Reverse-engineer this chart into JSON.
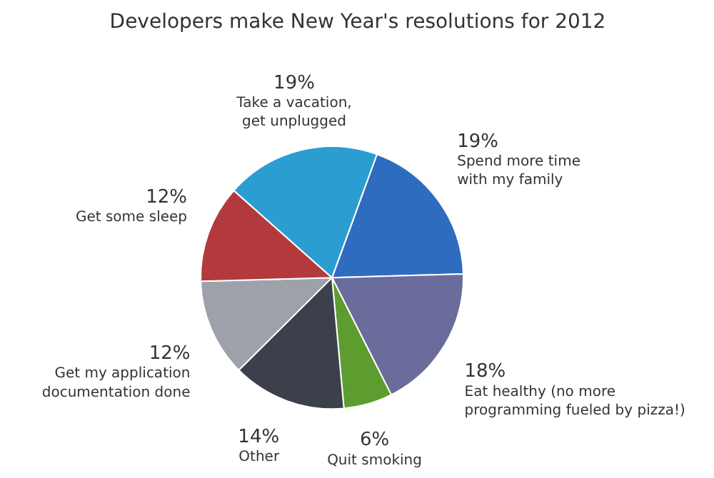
{
  "chart_data": {
    "type": "pie",
    "title": "Developers make New Year's resolutions for 2012",
    "categories": [
      "Spend more time\nwith my family",
      "Eat healthy (no more\nprogramming fueled by pizza!)",
      "Quit smoking",
      "Other",
      "Get my application\ndocumentation done",
      "Get some sleep",
      "Take a vacation,\nget unplugged"
    ],
    "values": [
      19,
      18,
      6,
      14,
      12,
      12,
      19
    ],
    "colors": [
      "#2e6cbf",
      "#6a6c9c",
      "#5d9c2e",
      "#3b404b",
      "#9da2aa",
      "#b33a3c",
      "#2b9dd1"
    ],
    "value_labels": [
      "19%",
      "18%",
      "6%",
      "14%",
      "12%",
      "12%",
      "19%"
    ]
  }
}
